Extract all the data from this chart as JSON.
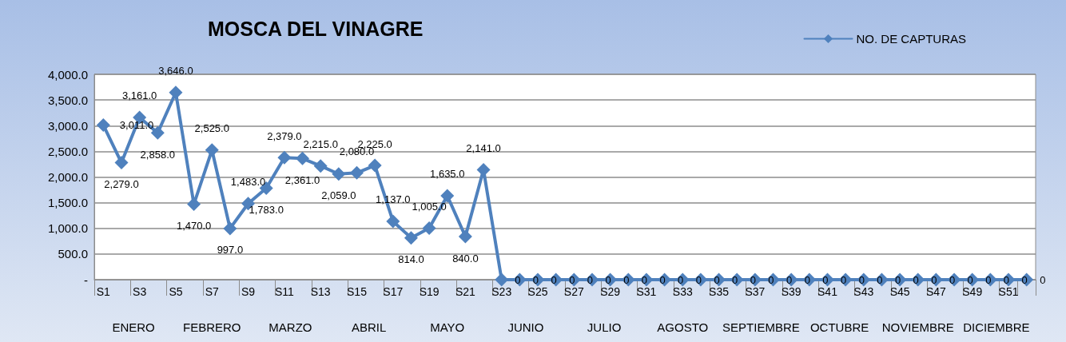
{
  "chart_data": {
    "type": "line",
    "title": "MOSCA DEL VINAGRE",
    "categories": [
      "S1",
      null,
      "S3",
      null,
      "S5",
      null,
      "S7",
      null,
      "S9",
      null,
      "S11",
      null,
      "S13",
      null,
      "S15",
      null,
      "S17",
      null,
      "S19",
      null,
      "S21",
      null,
      "S23",
      null,
      "S25",
      null,
      "S27",
      null,
      "S29",
      null,
      "S31",
      null,
      "S33",
      null,
      "S35",
      null,
      "S37",
      null,
      "S39",
      null,
      "S41",
      null,
      "S43",
      null,
      "S45",
      null,
      "S47",
      null,
      "S49",
      null,
      "S51",
      null
    ],
    "series": [
      {
        "name": "NO. DE CAPTURAS",
        "color": "#4f81bd",
        "values": [
          3011,
          2279,
          3161,
          2858,
          3646,
          1470,
          2525,
          997,
          1483,
          1783,
          2379,
          2361,
          2215,
          2059,
          2080,
          2225,
          1137,
          814,
          1005,
          1635,
          840,
          2141,
          0,
          0,
          0,
          0,
          0,
          0,
          0,
          0,
          0,
          0,
          0,
          0,
          0,
          0,
          0,
          0,
          0,
          0,
          0,
          0,
          0,
          0,
          0,
          0,
          0,
          0,
          0,
          0,
          0,
          0
        ],
        "value_labels": [
          "3,011.0",
          "2,279.0",
          "3,161.0",
          "2,858.0",
          "3,646.0",
          "1,470.0",
          "2,525.0",
          "997.0",
          "1,483.0",
          "1,783.0",
          "2,379.0",
          "2,361.0",
          "2,215.0",
          "2,059.0",
          "2,080.0",
          "2,225.0",
          "1,137.0",
          "814.0",
          "1,005.0",
          "1,635.0",
          "840.0",
          "2,141.0",
          "0",
          "0",
          "0",
          "0",
          "0",
          "0",
          "0",
          "0",
          "0",
          "0",
          "0",
          "0",
          "0",
          "0",
          "0",
          "0",
          "0",
          "0",
          "0",
          "0",
          "0",
          "0",
          "0",
          "0",
          "0",
          "0",
          "0",
          "0",
          "0",
          "0"
        ]
      }
    ],
    "ylim": [
      0,
      4000
    ],
    "yticks": [
      {
        "value": 0,
        "label": "-"
      },
      {
        "value": 500,
        "label": "500.0"
      },
      {
        "value": 1000,
        "label": "1,000.0"
      },
      {
        "value": 1500,
        "label": "1,500.0"
      },
      {
        "value": 2000,
        "label": "2,000.0"
      },
      {
        "value": 2500,
        "label": "2,500.0"
      },
      {
        "value": 3000,
        "label": "3,000.0"
      },
      {
        "value": 3500,
        "label": "3,500.0"
      },
      {
        "value": 4000,
        "label": "4,000.0"
      }
    ],
    "grid": "y",
    "legend": "top right",
    "marker": "diamond",
    "line_style": "solid",
    "annotations": [
      "ENERO",
      "FEBRERO",
      "MARZO",
      "ABRIL",
      "MAYO",
      "JUNIO",
      "JULIO",
      "AGOSTO",
      "SEPTIEMBRE",
      "OCTUBRE",
      "NOVIEMBRE",
      "DICIEMBRE"
    ]
  }
}
